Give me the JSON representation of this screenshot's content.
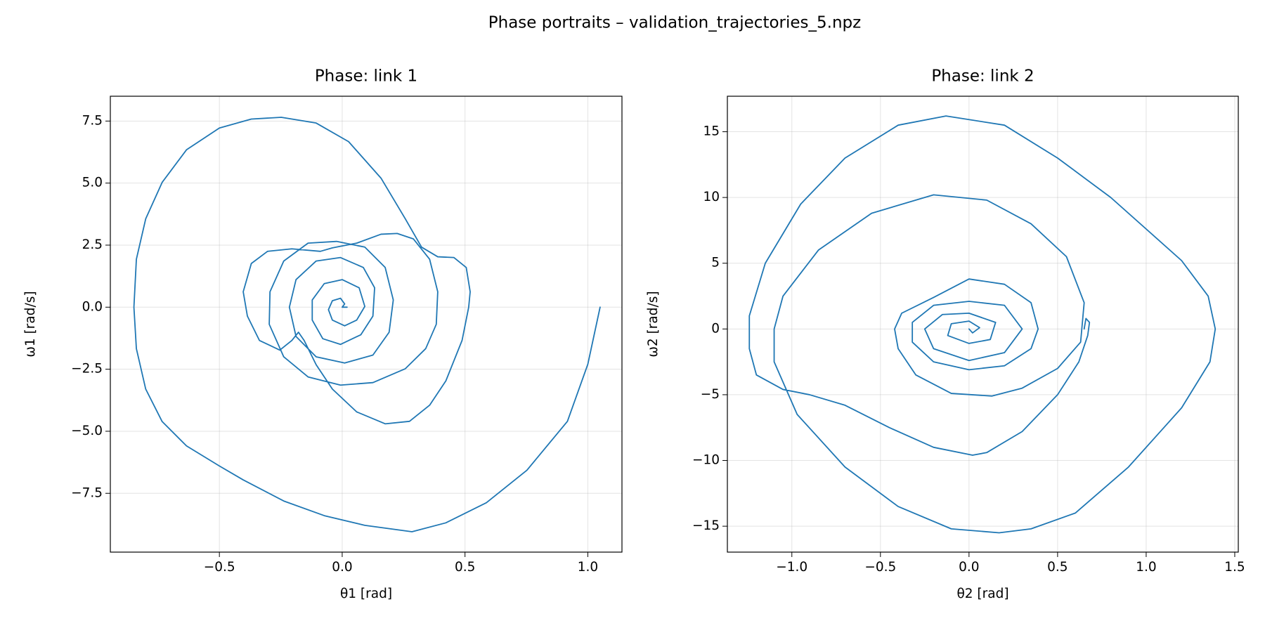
{
  "title": "Phase portraits – validation_trajectories_5.npz",
  "chart_data": [
    {
      "type": "line",
      "title": "Phase: link 1",
      "x_label": "θ1 [rad]",
      "y_label": "ω1 [rad/s]",
      "color": "#1f77b4",
      "grid": true,
      "xlim": [
        -0.944,
        1.139
      ],
      "ylim": [
        -9.87,
        8.5
      ],
      "xticks": [
        {
          "value": -0.5,
          "label": "−0.5"
        },
        {
          "value": 0,
          "label": "0.0"
        },
        {
          "value": 0.5,
          "label": "0.5"
        },
        {
          "value": 1,
          "label": "1.0"
        }
      ],
      "yticks": [
        7.5,
        {
          "value": 5,
          "label": "5.0"
        },
        2.5,
        {
          "value": 0,
          "label": "0.0"
        },
        {
          "value": -2.5,
          "label": "−2.5"
        },
        {
          "value": -5,
          "label": "−5.0"
        },
        {
          "value": -7.5,
          "label": "−7.5"
        }
      ],
      "x": [
        1.05,
        1.0,
        0.917,
        0.752,
        0.587,
        0.422,
        0.284,
        0.092,
        -0.073,
        -0.238,
        -0.403,
        -0.5,
        -0.634,
        -0.733,
        -0.8,
        -0.838,
        -0.848,
        -0.838,
        -0.8,
        -0.733,
        -0.634,
        -0.5,
        -0.37,
        -0.248,
        -0.106,
        0.026,
        0.158,
        0.257,
        0.323,
        0.389,
        0.455,
        0.505,
        0.521,
        0.515,
        0.488,
        0.422,
        0.356,
        0.274,
        0.175,
        0.059,
        -0.04,
        -0.106,
        -0.155,
        -0.178,
        -0.205,
        -0.254,
        -0.337,
        -0.386,
        -0.403,
        -0.37,
        -0.304,
        -0.205,
        -0.089,
        -0.04,
        0.059,
        0.158,
        0.224,
        0.29,
        0.356,
        0.389,
        0.383,
        0.34,
        0.257,
        0.125,
        -0.007,
        -0.139,
        -0.238,
        -0.297,
        -0.294,
        -0.238,
        -0.139,
        -0.023,
        0.092,
        0.175,
        0.208,
        0.191,
        0.125,
        0.01,
        -0.106,
        -0.188,
        -0.215,
        -0.188,
        -0.106,
        -0.007,
        0.086,
        0.132,
        0.125,
        0.076,
        -0.007,
        -0.079,
        -0.122,
        -0.122,
        -0.073,
        0,
        0.069,
        0.092,
        0.059,
        0.01,
        -0.04,
        -0.056,
        -0.04,
        -0.007,
        0.01,
        0,
        0.02
      ],
      "values": [
        0,
        -2.3,
        -4.6,
        -6.57,
        -7.88,
        -8.69,
        -9.05,
        -8.79,
        -8.4,
        -7.81,
        -6.96,
        -6.4,
        -5.59,
        -4.61,
        -3.3,
        -1.67,
        0,
        1.93,
        3.56,
        5.03,
        6.34,
        7.22,
        7.58,
        7.65,
        7.42,
        6.67,
        5.2,
        3.56,
        2.42,
        2.03,
        2.0,
        1.6,
        0.62,
        0,
        -1.34,
        -2.97,
        -3.95,
        -4.6,
        -4.7,
        -4.22,
        -3.3,
        -2.32,
        -1.34,
        -1.01,
        -1.34,
        -1.73,
        -1.34,
        -0.36,
        0.62,
        1.76,
        2.25,
        2.35,
        2.25,
        2.39,
        2.58,
        2.94,
        2.97,
        2.75,
        1.93,
        0.62,
        -0.69,
        -1.67,
        -2.48,
        -3.04,
        -3.14,
        -2.81,
        -2.0,
        -0.69,
        0.62,
        1.86,
        2.58,
        2.65,
        2.42,
        1.6,
        0.29,
        -1.01,
        -1.93,
        -2.25,
        -2.0,
        -1.18,
        0,
        1.11,
        1.86,
        2.0,
        1.6,
        0.78,
        -0.36,
        -1.11,
        -1.5,
        -1.27,
        -0.52,
        0.29,
        0.95,
        1.11,
        0.78,
        0.03,
        -0.52,
        -0.75,
        -0.52,
        -0.1,
        0.26,
        0.36,
        0.13,
        0,
        0
      ]
    },
    {
      "type": "line",
      "title": "Phase: link 2",
      "x_label": "θ2 [rad]",
      "y_label": "ω2 [rad/s]",
      "color": "#1f77b4",
      "grid": true,
      "xlim": [
        -1.364,
        1.52
      ],
      "ylim": [
        -16.97,
        17.7
      ],
      "xticks": [
        {
          "value": -1,
          "label": "−1.0"
        },
        {
          "value": -0.5,
          "label": "−0.5"
        },
        {
          "value": 0,
          "label": "0.0"
        },
        {
          "value": 0.5,
          "label": "0.5"
        },
        {
          "value": 1,
          "label": "1.0"
        },
        {
          "value": 1.5,
          "label": "1.5"
        }
      ],
      "yticks": [
        15,
        10,
        5,
        0,
        {
          "value": -5,
          "label": "−5"
        },
        {
          "value": -10,
          "label": "−10"
        },
        {
          "value": -15,
          "label": "−15"
        }
      ],
      "x": [
        0.65,
        0.66,
        0.68,
        0.67,
        0.62,
        0.5,
        0.3,
        0.1,
        0.02,
        -0.2,
        -0.45,
        -0.7,
        -0.9,
        -1.05,
        -1.2,
        -1.24,
        -1.24,
        -1.15,
        -0.95,
        -0.7,
        -0.4,
        -0.13,
        0.2,
        0.5,
        0.8,
        1.2,
        1.35,
        1.39,
        1.36,
        1.2,
        0.9,
        0.6,
        0.35,
        0.17,
        -0.1,
        -0.4,
        -0.7,
        -0.97,
        -1.1,
        -1.1,
        -1.05,
        -0.85,
        -0.55,
        -0.2,
        0.1,
        0.35,
        0.55,
        0.65,
        0.63,
        0.5,
        0.3,
        0.13,
        -0.1,
        -0.3,
        -0.4,
        -0.42,
        -0.38,
        -0.2,
        0,
        0.2,
        0.35,
        0.39,
        0.35,
        0.2,
        0,
        -0.2,
        -0.32,
        -0.32,
        -0.2,
        0,
        0.2,
        0.3,
        0.2,
        0,
        -0.2,
        -0.25,
        -0.15,
        0,
        0.15,
        0.12,
        0,
        -0.12,
        -0.1,
        0,
        0.06,
        0.02,
        0
      ],
      "values": [
        0,
        0.8,
        0.5,
        -0.5,
        -2.5,
        -5,
        -7.8,
        -9.4,
        -9.6,
        -9.0,
        -7.5,
        -5.8,
        -5.0,
        -4.6,
        -3.5,
        -1.5,
        1,
        5,
        9.5,
        13,
        15.5,
        16.2,
        15.5,
        13,
        10,
        5.2,
        2.5,
        0,
        -2.5,
        -6,
        -10.5,
        -14,
        -15.2,
        -15.5,
        -15.2,
        -13.5,
        -10.5,
        -6.5,
        -2.5,
        0,
        2.5,
        6,
        8.8,
        10.2,
        9.8,
        8,
        5.5,
        2,
        -1,
        -3,
        -4.5,
        -5.1,
        -4.9,
        -3.5,
        -1.5,
        0,
        1.2,
        2.4,
        3.8,
        3.4,
        2.0,
        0,
        -1.5,
        -2.8,
        -3.1,
        -2.5,
        -1,
        0.5,
        1.8,
        2.1,
        1.8,
        0,
        -1.8,
        -2.4,
        -1.5,
        0,
        1.1,
        1.2,
        0.5,
        -0.8,
        -1.1,
        -0.5,
        0.4,
        0.6,
        0.1,
        -0.3,
        0
      ]
    }
  ]
}
